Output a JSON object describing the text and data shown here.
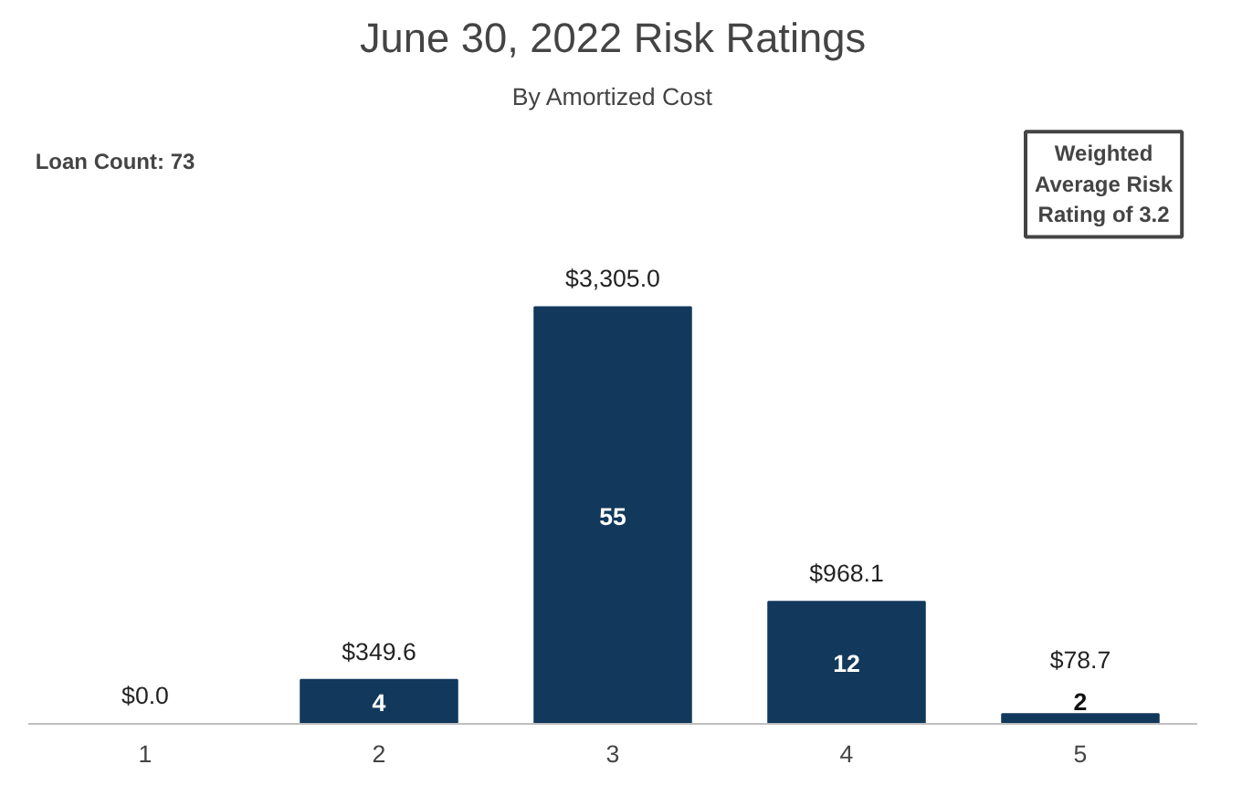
{
  "chart_data": {
    "type": "bar",
    "title": "June 30, 2022 Risk Ratings",
    "subtitle": "By Amortized Cost",
    "categories": [
      "1",
      "2",
      "3",
      "4",
      "5"
    ],
    "values": [
      0.0,
      349.6,
      3305.0,
      968.1,
      78.7
    ],
    "value_labels": [
      "$0.0",
      "$349.6",
      "$3,305.0",
      "$968.1",
      "$78.7"
    ],
    "color": "#12395c",
    "tick_labels": "x",
    "grid": false,
    "annotations": [
      "Loan Count: 73",
      "Weighted Average Risk Rating of 3.2",
      "4",
      "55",
      "12",
      "2"
    ]
  }
}
